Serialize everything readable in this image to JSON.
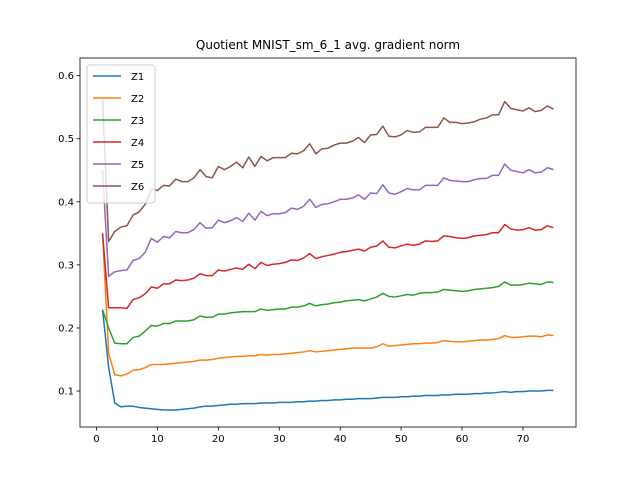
{
  "chart_data": {
    "type": "line",
    "title": "Quotient MNIST_sm_6_1 avg. gradient norm",
    "xlabel": "",
    "ylabel": "",
    "xlim": [
      -2.7,
      78.7
    ],
    "ylim": [
      0.043,
      0.628
    ],
    "xticks": [
      0,
      10,
      20,
      30,
      40,
      50,
      60,
      70
    ],
    "yticks": [
      0.1,
      0.2,
      0.3,
      0.4,
      0.5,
      0.6
    ],
    "grid": false,
    "legend_position": "upper-left",
    "x": [
      1,
      2,
      3,
      4,
      5,
      6,
      7,
      8,
      9,
      10,
      11,
      12,
      13,
      14,
      15,
      16,
      17,
      18,
      19,
      20,
      21,
      22,
      23,
      24,
      25,
      26,
      27,
      28,
      29,
      30,
      31,
      32,
      33,
      34,
      35,
      36,
      37,
      38,
      39,
      40,
      41,
      42,
      43,
      44,
      45,
      46,
      47,
      48,
      49,
      50,
      51,
      52,
      53,
      54,
      55,
      56,
      57,
      58,
      59,
      60,
      61,
      62,
      63,
      64,
      65,
      66,
      67,
      68,
      69,
      70,
      71,
      72,
      73,
      74,
      75
    ],
    "series": [
      {
        "name": "Z1",
        "color": "#1f77b4",
        "values": [
          0.229,
          0.138,
          0.081,
          0.075,
          0.076,
          0.076,
          0.074,
          0.073,
          0.072,
          0.071,
          0.07,
          0.07,
          0.07,
          0.071,
          0.072,
          0.073,
          0.075,
          0.076,
          0.076,
          0.077,
          0.078,
          0.079,
          0.079,
          0.08,
          0.08,
          0.08,
          0.081,
          0.081,
          0.081,
          0.082,
          0.082,
          0.082,
          0.083,
          0.083,
          0.084,
          0.084,
          0.085,
          0.085,
          0.086,
          0.086,
          0.087,
          0.087,
          0.088,
          0.088,
          0.088,
          0.089,
          0.09,
          0.09,
          0.09,
          0.091,
          0.091,
          0.092,
          0.092,
          0.093,
          0.093,
          0.093,
          0.094,
          0.094,
          0.095,
          0.095,
          0.095,
          0.096,
          0.096,
          0.097,
          0.097,
          0.098,
          0.099,
          0.098,
          0.099,
          0.099,
          0.1,
          0.1,
          0.1,
          0.101,
          0.101
        ]
      },
      {
        "name": "Z2",
        "color": "#ff7f0e",
        "values": [
          0.35,
          0.16,
          0.126,
          0.124,
          0.127,
          0.133,
          0.134,
          0.137,
          0.142,
          0.142,
          0.142,
          0.143,
          0.144,
          0.145,
          0.146,
          0.147,
          0.149,
          0.149,
          0.15,
          0.152,
          0.153,
          0.154,
          0.155,
          0.155,
          0.156,
          0.156,
          0.158,
          0.157,
          0.158,
          0.158,
          0.159,
          0.16,
          0.161,
          0.162,
          0.164,
          0.162,
          0.163,
          0.164,
          0.165,
          0.166,
          0.167,
          0.168,
          0.168,
          0.168,
          0.168,
          0.17,
          0.175,
          0.171,
          0.172,
          0.173,
          0.174,
          0.175,
          0.175,
          0.176,
          0.176,
          0.177,
          0.18,
          0.179,
          0.178,
          0.178,
          0.179,
          0.18,
          0.181,
          0.181,
          0.182,
          0.183,
          0.188,
          0.185,
          0.185,
          0.186,
          0.187,
          0.187,
          0.186,
          0.189,
          0.188
        ]
      },
      {
        "name": "Z3",
        "color": "#2ca02c",
        "values": [
          0.229,
          0.2,
          0.176,
          0.175,
          0.175,
          0.185,
          0.187,
          0.195,
          0.204,
          0.203,
          0.207,
          0.207,
          0.211,
          0.211,
          0.211,
          0.213,
          0.219,
          0.217,
          0.217,
          0.222,
          0.222,
          0.224,
          0.225,
          0.226,
          0.226,
          0.226,
          0.23,
          0.228,
          0.229,
          0.23,
          0.23,
          0.233,
          0.233,
          0.235,
          0.239,
          0.235,
          0.237,
          0.238,
          0.24,
          0.241,
          0.243,
          0.244,
          0.245,
          0.243,
          0.246,
          0.249,
          0.255,
          0.25,
          0.249,
          0.251,
          0.253,
          0.252,
          0.255,
          0.256,
          0.256,
          0.257,
          0.261,
          0.26,
          0.259,
          0.258,
          0.259,
          0.261,
          0.262,
          0.263,
          0.264,
          0.266,
          0.273,
          0.268,
          0.268,
          0.269,
          0.271,
          0.27,
          0.269,
          0.273,
          0.272
        ]
      },
      {
        "name": "Z4",
        "color": "#d62728",
        "values": [
          0.35,
          0.232,
          0.232,
          0.232,
          0.231,
          0.245,
          0.248,
          0.254,
          0.265,
          0.263,
          0.27,
          0.27,
          0.276,
          0.275,
          0.276,
          0.279,
          0.286,
          0.283,
          0.283,
          0.292,
          0.29,
          0.293,
          0.295,
          0.293,
          0.301,
          0.294,
          0.304,
          0.299,
          0.301,
          0.302,
          0.304,
          0.308,
          0.307,
          0.311,
          0.318,
          0.31,
          0.313,
          0.315,
          0.317,
          0.32,
          0.321,
          0.323,
          0.325,
          0.322,
          0.328,
          0.33,
          0.338,
          0.328,
          0.327,
          0.33,
          0.333,
          0.331,
          0.333,
          0.338,
          0.337,
          0.338,
          0.346,
          0.345,
          0.343,
          0.342,
          0.343,
          0.346,
          0.347,
          0.348,
          0.351,
          0.351,
          0.364,
          0.357,
          0.355,
          0.356,
          0.359,
          0.355,
          0.356,
          0.362,
          0.359
        ]
      },
      {
        "name": "Z5",
        "color": "#9467bd",
        "values": [
          0.45,
          0.282,
          0.289,
          0.291,
          0.292,
          0.307,
          0.31,
          0.32,
          0.342,
          0.336,
          0.345,
          0.343,
          0.353,
          0.351,
          0.351,
          0.356,
          0.367,
          0.358,
          0.359,
          0.371,
          0.367,
          0.37,
          0.375,
          0.369,
          0.382,
          0.371,
          0.385,
          0.378,
          0.381,
          0.381,
          0.383,
          0.39,
          0.388,
          0.393,
          0.404,
          0.391,
          0.396,
          0.397,
          0.4,
          0.404,
          0.404,
          0.406,
          0.411,
          0.404,
          0.414,
          0.413,
          0.427,
          0.414,
          0.412,
          0.416,
          0.421,
          0.419,
          0.419,
          0.426,
          0.426,
          0.426,
          0.438,
          0.434,
          0.433,
          0.432,
          0.432,
          0.435,
          0.437,
          0.437,
          0.442,
          0.442,
          0.46,
          0.45,
          0.448,
          0.446,
          0.451,
          0.446,
          0.447,
          0.454,
          0.451
        ]
      },
      {
        "name": "Z6",
        "color": "#8c564b",
        "values": [
          0.562,
          0.337,
          0.353,
          0.36,
          0.362,
          0.379,
          0.384,
          0.396,
          0.42,
          0.418,
          0.426,
          0.425,
          0.436,
          0.432,
          0.432,
          0.438,
          0.451,
          0.44,
          0.438,
          0.456,
          0.451,
          0.456,
          0.463,
          0.454,
          0.471,
          0.456,
          0.472,
          0.465,
          0.47,
          0.47,
          0.47,
          0.477,
          0.476,
          0.481,
          0.492,
          0.476,
          0.484,
          0.485,
          0.49,
          0.493,
          0.493,
          0.496,
          0.502,
          0.494,
          0.506,
          0.507,
          0.52,
          0.504,
          0.503,
          0.506,
          0.513,
          0.51,
          0.511,
          0.518,
          0.518,
          0.518,
          0.533,
          0.526,
          0.526,
          0.524,
          0.525,
          0.527,
          0.531,
          0.533,
          0.538,
          0.538,
          0.559,
          0.548,
          0.546,
          0.544,
          0.549,
          0.543,
          0.545,
          0.552,
          0.547
        ]
      }
    ]
  }
}
